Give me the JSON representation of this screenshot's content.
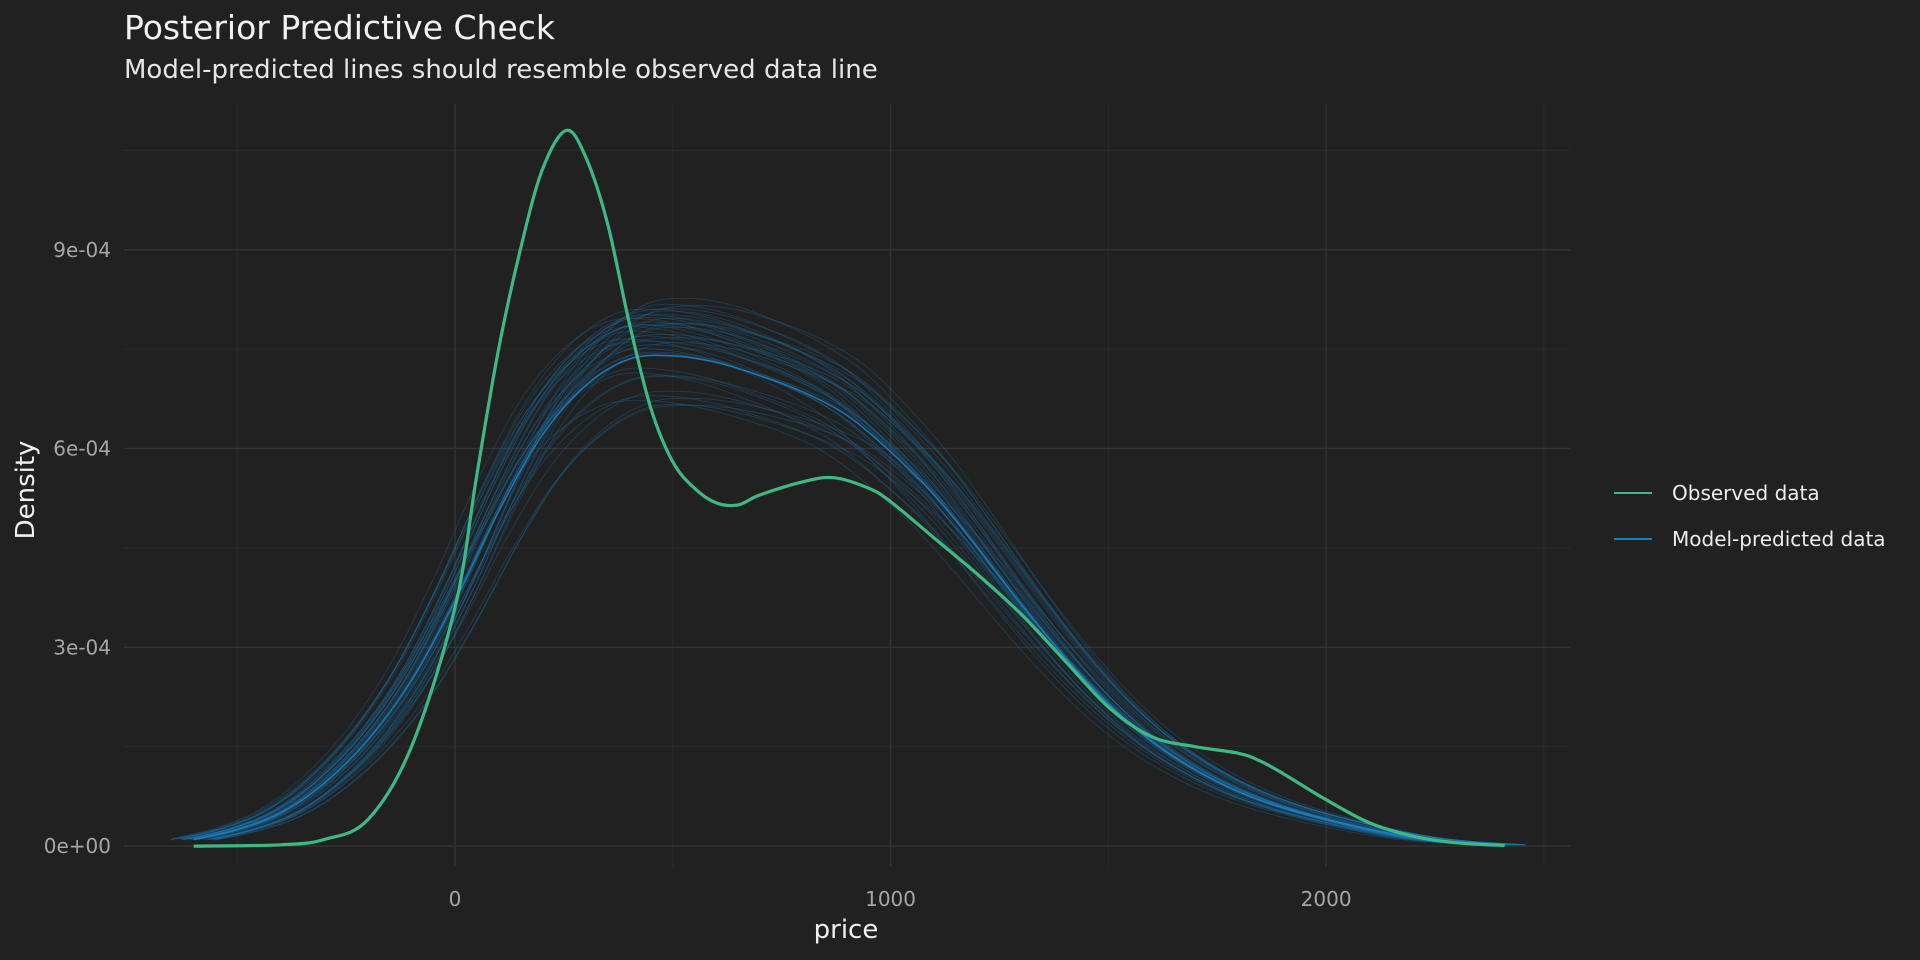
{
  "chart_data": {
    "type": "line",
    "title": "Posterior Predictive Check",
    "subtitle": "Model-predicted lines should resemble observed data line",
    "xlabel": "price",
    "ylabel": "Density",
    "xlim": [
      -760,
      2560
    ],
    "ylim": [
      -3e-05,
      0.00112
    ],
    "x_ticks": [
      0,
      1000,
      2000
    ],
    "x_tick_labels": [
      "0",
      "1000",
      "2000"
    ],
    "y_ticks": [
      0,
      0.0003,
      0.0006,
      0.0009
    ],
    "y_tick_labels": [
      "0e+00",
      "3e-04",
      "6e-04",
      "9e-04"
    ],
    "grid": true,
    "legend_position": "right",
    "series": [
      {
        "name": "Observed data",
        "color": "#3fb983",
        "x": [
          -600,
          -400,
          -300,
          -200,
          -100,
          0,
          50,
          100,
          150,
          200,
          255,
          300,
          350,
          400,
          450,
          500,
          550,
          600,
          650,
          700,
          800,
          870,
          950,
          1000,
          1100,
          1200,
          1300,
          1400,
          1500,
          1600,
          1700,
          1800,
          1850,
          1900,
          2000,
          2100,
          2200,
          2300,
          2410
        ],
        "y": [
          0.0,
          2e-06,
          1e-05,
          4e-05,
          0.00015,
          0.00036,
          0.00056,
          0.00075,
          0.0009,
          0.00102,
          0.00108,
          0.00104,
          0.00094,
          0.00079,
          0.00066,
          0.00058,
          0.00054,
          0.000518,
          0.000515,
          0.00053,
          0.00055,
          0.000556,
          0.00054,
          0.00052,
          0.000465,
          0.00041,
          0.00035,
          0.00028,
          0.00021,
          0.000165,
          0.00015,
          0.00014,
          0.000128,
          0.00011,
          7e-05,
          3.5e-05,
          1.5e-05,
          5e-06,
          1e-06
        ]
      },
      {
        "name": "Model-predicted data",
        "color": "#1a7fc0",
        "x": [
          -600,
          -500,
          -400,
          -300,
          -200,
          -100,
          0,
          100,
          200,
          300,
          400,
          500,
          600,
          700,
          800,
          900,
          1000,
          1100,
          1200,
          1300,
          1400,
          1500,
          1600,
          1700,
          1800,
          1900,
          2000,
          2100,
          2200,
          2300,
          2410
        ],
        "y": [
          1e-05,
          2.5e-05,
          5e-05,
          9.5e-05,
          0.00016,
          0.00025,
          0.00037,
          0.000505,
          0.00062,
          0.000695,
          0.000735,
          0.00074,
          0.00073,
          0.00071,
          0.000685,
          0.00065,
          0.000595,
          0.00053,
          0.00045,
          0.000365,
          0.000285,
          0.000215,
          0.000158,
          0.000115,
          8.2e-05,
          5.8e-05,
          4e-05,
          2.5e-05,
          1.3e-05,
          6e-06,
          2e-06
        ]
      }
    ]
  }
}
